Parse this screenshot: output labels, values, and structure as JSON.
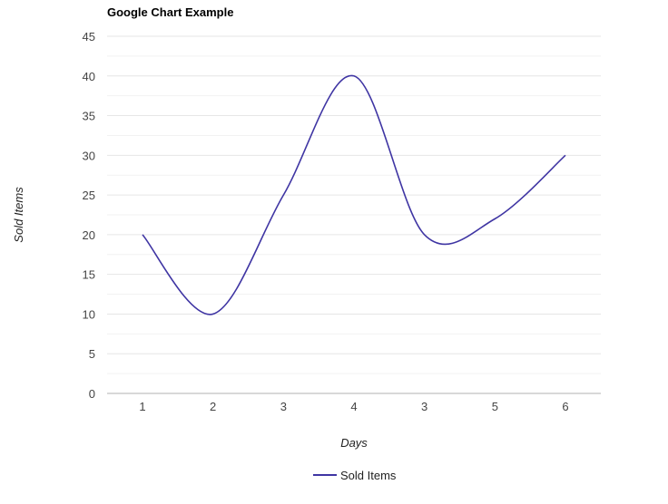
{
  "chart_data": {
    "type": "line",
    "title": "Google Chart Example",
    "xlabel": "Days",
    "ylabel": "Sold Items",
    "categories": [
      "1",
      "2",
      "3",
      "4",
      "3",
      "5",
      "6"
    ],
    "series": [
      {
        "name": "Sold Items",
        "values": [
          20,
          10,
          25,
          40,
          20,
          22,
          30
        ]
      }
    ],
    "ylim": [
      0,
      45
    ],
    "yticks": [
      "0",
      "5",
      "10",
      "15",
      "20",
      "25",
      "30",
      "35",
      "40",
      "45"
    ],
    "grid": true,
    "curve": "smooth",
    "legend": "bottom",
    "line_color": "#3f35a3",
    "gridline_color": "#e6e6e6",
    "minor_gridline_color": "#f2f2f2",
    "baseline_color": "#cccccc"
  }
}
